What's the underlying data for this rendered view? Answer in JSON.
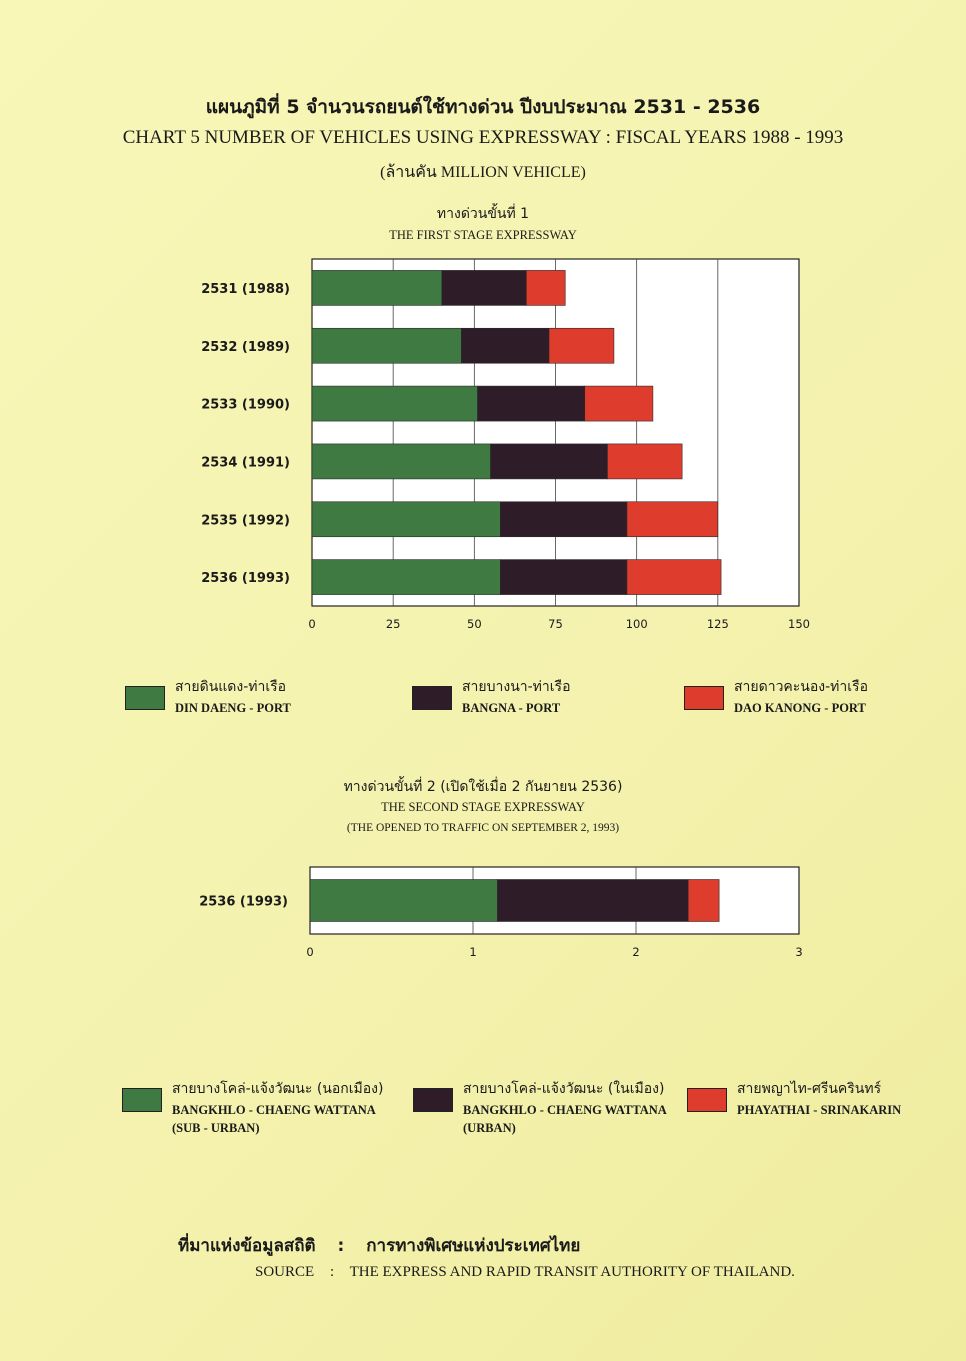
{
  "title_thai": "แผนภูมิที่ 5 จำนวนรถยนต์ใช้ทางด่วน ปีงบประมาณ 2531 - 2536",
  "title_eng": "CHART 5 NUMBER OF VEHICLES USING EXPRESSWAY : FISCAL YEARS 1988 - 1993",
  "unit": "(ล้านคัน MILLION VEHICLE)",
  "chart1": {
    "title_thai": "ทางด่วนขั้นที่ 1",
    "title_eng": "THE FIRST STAGE EXPRESSWAY"
  },
  "chart2": {
    "title_thai": "ทางด่วนขั้นที่ 2 (เปิดใช้เมื่อ 2 กันยายน 2536)",
    "title_eng": "THE SECOND STAGE EXPRESSWAY",
    "note_eng": "(THE OPENED TO TRAFFIC ON SEPTEMBER 2, 1993)"
  },
  "chart_data": [
    {
      "type": "bar",
      "orientation": "horizontal",
      "stacked": true,
      "categories": [
        "2531 (1988)",
        "2532 (1989)",
        "2533 (1990)",
        "2534 (1991)",
        "2535 (1992)",
        "2536 (1993)"
      ],
      "series": [
        {
          "name": "DIN DAENG - PORT",
          "color": "#3f7a43",
          "values": [
            40,
            46,
            51,
            55,
            58,
            58
          ]
        },
        {
          "name": "BANGNA - PORT",
          "color": "#2e1c28",
          "values": [
            26,
            27,
            33,
            36,
            39,
            39
          ]
        },
        {
          "name": "DAO KANONG - PORT",
          "color": "#de3c2c",
          "values": [
            12,
            20,
            21,
            23,
            28,
            29
          ]
        }
      ],
      "xlim": [
        0,
        150
      ],
      "xticks": [
        0,
        25,
        50,
        75,
        100,
        125,
        150
      ],
      "grid": true
    },
    {
      "type": "bar",
      "orientation": "horizontal",
      "stacked": true,
      "categories": [
        "2536 (1993)"
      ],
      "series": [
        {
          "name": "BANGKHLO - CHAENG WATTANA (SUB - URBAN)",
          "color": "#3f7a43",
          "values": [
            1.15
          ]
        },
        {
          "name": "BANGKHLO - CHAENG WATTANA (URBAN)",
          "color": "#2e1c28",
          "values": [
            1.17
          ]
        },
        {
          "name": "PHAYATHAI - SRINAKARIN",
          "color": "#de3c2c",
          "values": [
            0.19
          ]
        }
      ],
      "xlim": [
        0,
        3
      ],
      "xticks": [
        0,
        1,
        2,
        3
      ],
      "grid": true
    }
  ],
  "legend1": [
    {
      "thai": "สายดินแดง-ท่าเรือ",
      "eng": "DIN DAENG - PORT",
      "color": "#3f7a43"
    },
    {
      "thai": "สายบางนา-ท่าเรือ",
      "eng": "BANGNA - PORT",
      "color": "#2e1c28"
    },
    {
      "thai": "สายดาวคะนอง-ท่าเรือ",
      "eng": "DAO KANONG - PORT",
      "color": "#de3c2c"
    }
  ],
  "legend2": [
    {
      "thai": "สายบางโคล่-แจ้งวัฒนะ (นอกเมือง)",
      "eng": "BANGKHLO - CHAENG WATTANA",
      "eng2": "(SUB - URBAN)",
      "color": "#3f7a43"
    },
    {
      "thai": "สายบางโคล่-แจ้งวัฒนะ (ในเมือง)",
      "eng": "BANGKHLO - CHAENG WATTANA",
      "eng2": "(URBAN)",
      "color": "#2e1c28"
    },
    {
      "thai": "สายพญาไท-ศรีนครินทร์",
      "eng": "PHAYATHAI - SRINAKARIN",
      "eng2": "",
      "color": "#de3c2c"
    }
  ],
  "source": {
    "thai_label": "ที่มาแห่งข้อมูลสถิติ",
    "thai_text": "การทางพิเศษแห่งประเทศไทย",
    "eng_label": "SOURCE",
    "eng_text": "THE EXPRESS AND RAPID TRANSIT AUTHORITY OF THAILAND."
  }
}
